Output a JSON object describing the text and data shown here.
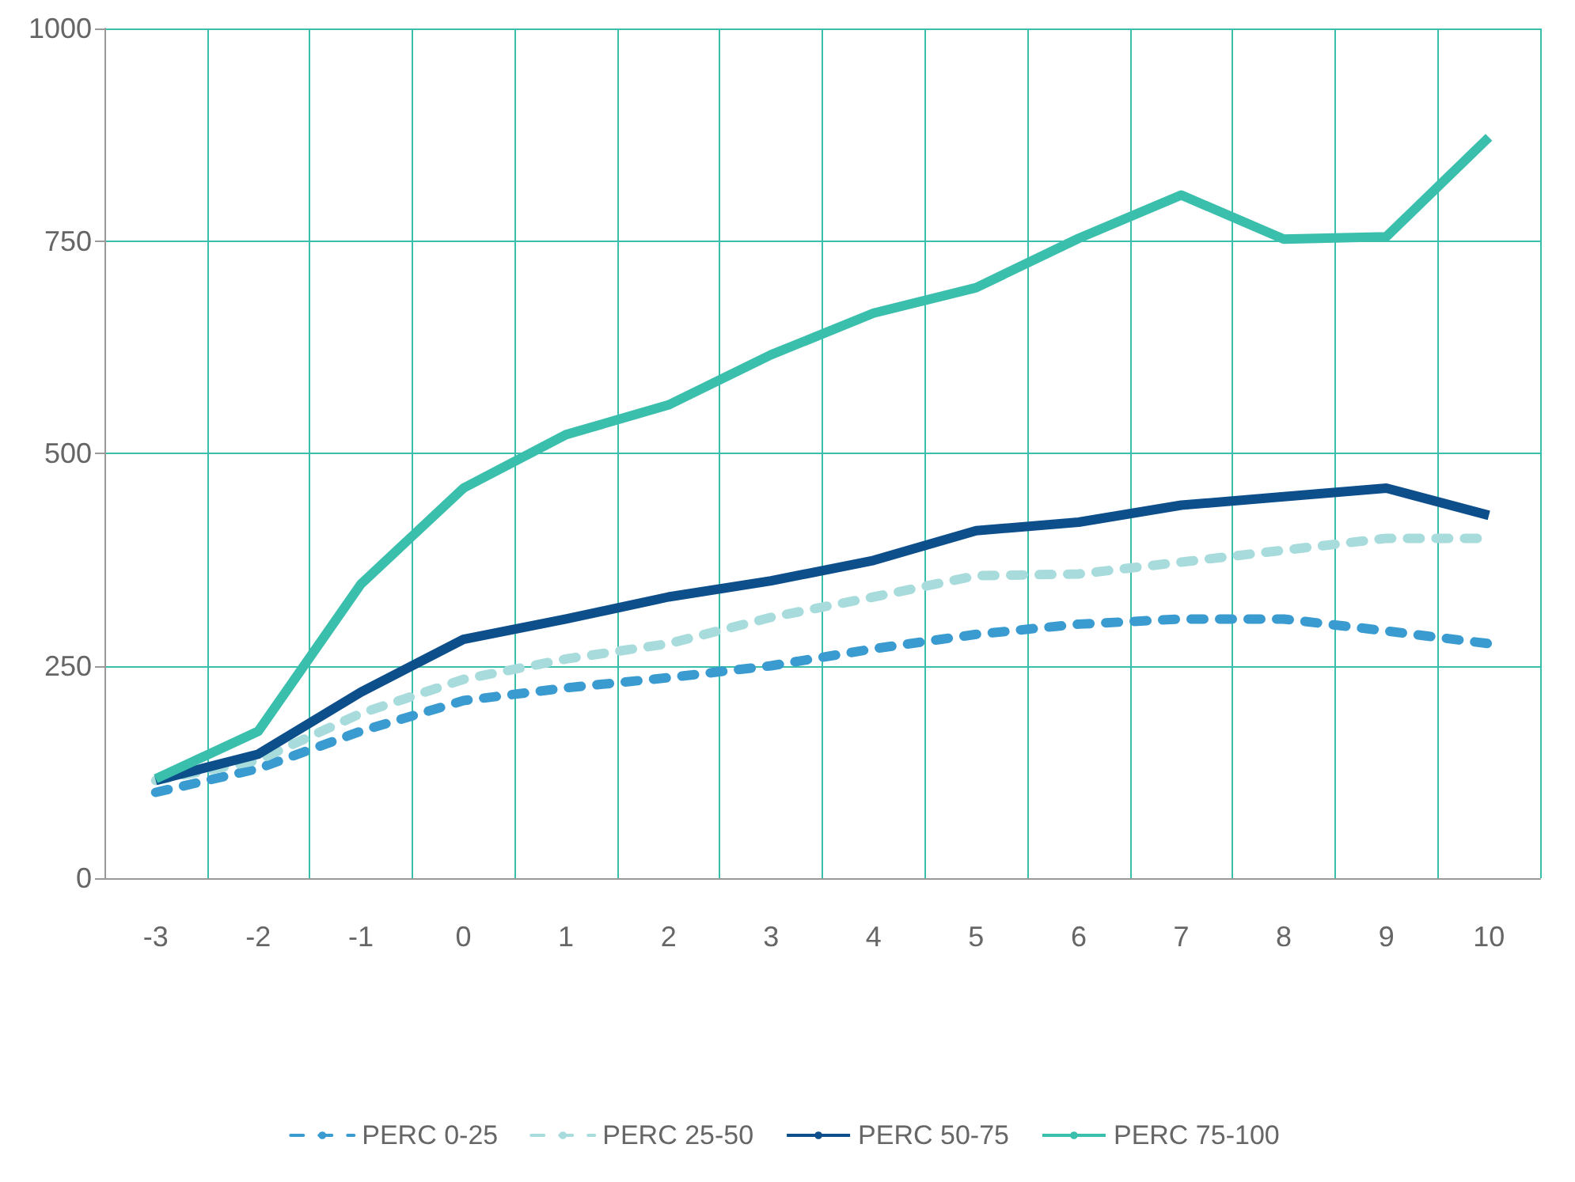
{
  "chart_data": {
    "type": "line",
    "categories": [
      "-3",
      "-2",
      "-1",
      "0",
      "1",
      "2",
      "3",
      "4",
      "5",
      "6",
      "7",
      "8",
      "9",
      "10"
    ],
    "series": [
      {
        "name": "PERC 0-25",
        "color": "#3a9bd0",
        "line_style": "dashed",
        "values": [
          101,
          129,
          173,
          209,
          224,
          236,
          250,
          270,
          287,
          299,
          305,
          305,
          291,
          276
        ]
      },
      {
        "name": "PERC 25-50",
        "color": "#a8dcdc",
        "line_style": "dashed",
        "values": [
          115,
          139,
          194,
          234,
          258,
          276,
          307,
          331,
          356,
          358,
          372,
          386,
          400,
          400
        ]
      },
      {
        "name": "PERC 50-75",
        "color": "#0d4f8b",
        "line_style": "solid",
        "values": [
          115,
          146,
          219,
          281,
          305,
          331,
          350,
          374,
          409,
          419,
          439,
          449,
          459,
          427
        ]
      },
      {
        "name": "PERC 75-100",
        "color": "#3bbfad",
        "line_style": "solid",
        "values": [
          117,
          173,
          346,
          459,
          522,
          557,
          616,
          665,
          695,
          753,
          804,
          752,
          755,
          872
        ]
      }
    ],
    "ylim": [
      0,
      1000
    ],
    "yticks": [
      0,
      250,
      500,
      750,
      1000
    ],
    "grid": true,
    "legend": "bottom",
    "marker": "none"
  }
}
